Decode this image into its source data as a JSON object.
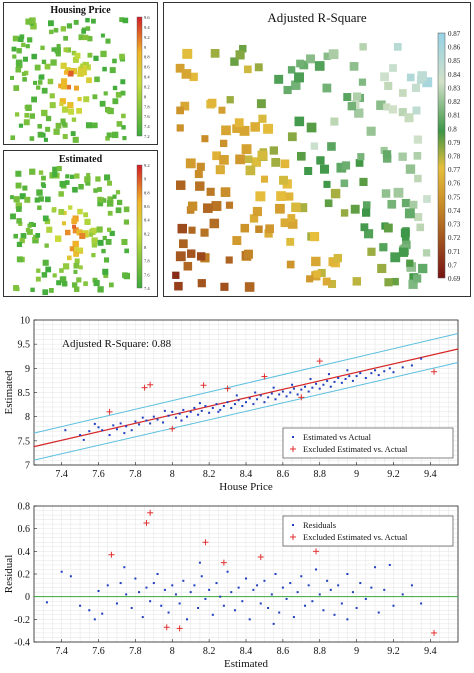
{
  "maps": {
    "housing": {
      "title": "Housing Price",
      "colorbar_ticks": [
        "9.6",
        "9.4",
        "9.2",
        "9",
        "8.8",
        "8.6",
        "8.4",
        "8.2",
        "8",
        "7.8",
        "7.6",
        "7.4",
        "7.2"
      ]
    },
    "estimated": {
      "title": "Estimated",
      "colorbar_ticks": [
        "9.2",
        "9",
        "8.8",
        "8.6",
        "8.4",
        "8.2",
        "8",
        "7.8",
        "7.6",
        "7.4"
      ]
    },
    "r2": {
      "title": "Adjusted R-Square",
      "colorbar_ticks": [
        "0.87",
        "0.86",
        "0.85",
        "0.84",
        "0.83",
        "0.82",
        "0.81",
        "0.8",
        "0.79",
        "0.78",
        "0.77",
        "0.76",
        "0.75",
        "0.74",
        "0.73",
        "0.72",
        "0.71",
        "0.7",
        "0.69"
      ]
    }
  },
  "colors": {
    "fit_line": "#d62728",
    "band_line": "#5bc0de",
    "points": "#1f3fbf",
    "excluded": "#e03030",
    "zero_line": "#3aa83a"
  },
  "chart_data": [
    {
      "type": "scatter",
      "annotation": "Adjusted R-Square: 0.88",
      "xlabel": "House Price",
      "ylabel": "Estimated",
      "xlim": [
        7.25,
        9.55
      ],
      "ylim": [
        7.0,
        10.0
      ],
      "xticks": [
        "7.4",
        "7.6",
        "7.8",
        "8",
        "8.2",
        "8.4",
        "8.6",
        "8.8",
        "9",
        "9.2",
        "9.4"
      ],
      "yticks": [
        "7",
        "7.5",
        "8",
        "8.5",
        "9",
        "9.5",
        "10"
      ],
      "grid": true,
      "legend": {
        "position": "bottom-right",
        "entries": [
          "Estimated vs Actual",
          "Excluded Estimated vs. Actual"
        ]
      },
      "fit_line": {
        "x": [
          7.25,
          9.55
        ],
        "y": [
          7.38,
          9.4
        ]
      },
      "band_upper": {
        "x": [
          7.25,
          9.55
        ],
        "y": [
          7.66,
          9.72
        ]
      },
      "band_lower": {
        "x": [
          7.25,
          9.55
        ],
        "y": [
          7.1,
          9.12
        ]
      },
      "series": [
        {
          "name": "Estimated vs Actual",
          "marker": "dot",
          "points": [
            [
              7.42,
              7.72
            ],
            [
              7.5,
              7.62
            ],
            [
              7.55,
              7.7
            ],
            [
              7.6,
              7.78
            ],
            [
              7.62,
              7.72
            ],
            [
              7.66,
              7.62
            ],
            [
              7.68,
              7.82
            ],
            [
              7.7,
              7.74
            ],
            [
              7.72,
              7.86
            ],
            [
              7.75,
              7.8
            ],
            [
              7.78,
              7.72
            ],
            [
              7.8,
              7.9
            ],
            [
              7.82,
              7.84
            ],
            [
              7.84,
              7.98
            ],
            [
              7.86,
              7.92
            ],
            [
              7.88,
              7.86
            ],
            [
              7.9,
              8.0
            ],
            [
              7.92,
              7.94
            ],
            [
              7.95,
              7.88
            ],
            [
              7.98,
              8.02
            ],
            [
              8.0,
              8.1
            ],
            [
              8.02,
              7.98
            ],
            [
              8.04,
              8.06
            ],
            [
              8.06,
              8.14
            ],
            [
              8.08,
              8.0
            ],
            [
              8.1,
              8.1
            ],
            [
              8.12,
              8.18
            ],
            [
              8.14,
              8.04
            ],
            [
              8.16,
              8.12
            ],
            [
              8.18,
              8.22
            ],
            [
              8.2,
              8.08
            ],
            [
              8.22,
              8.18
            ],
            [
              8.24,
              8.26
            ],
            [
              8.26,
              8.14
            ],
            [
              8.28,
              8.22
            ],
            [
              8.3,
              8.3
            ],
            [
              8.32,
              8.18
            ],
            [
              8.34,
              8.26
            ],
            [
              8.36,
              8.34
            ],
            [
              8.38,
              8.22
            ],
            [
              8.4,
              8.3
            ],
            [
              8.42,
              8.38
            ],
            [
              8.44,
              8.26
            ],
            [
              8.46,
              8.36
            ],
            [
              8.48,
              8.44
            ],
            [
              8.5,
              8.3
            ],
            [
              8.52,
              8.4
            ],
            [
              8.54,
              8.48
            ],
            [
              8.56,
              8.36
            ],
            [
              8.58,
              8.46
            ],
            [
              8.6,
              8.52
            ],
            [
              8.62,
              8.42
            ],
            [
              8.64,
              8.5
            ],
            [
              8.66,
              8.58
            ],
            [
              8.68,
              8.46
            ],
            [
              8.7,
              8.56
            ],
            [
              8.72,
              8.62
            ],
            [
              8.74,
              8.52
            ],
            [
              8.76,
              8.6
            ],
            [
              8.78,
              8.68
            ],
            [
              8.8,
              8.58
            ],
            [
              8.82,
              8.66
            ],
            [
              8.84,
              8.74
            ],
            [
              8.86,
              8.62
            ],
            [
              8.88,
              8.72
            ],
            [
              8.9,
              8.8
            ],
            [
              8.92,
              8.7
            ],
            [
              8.94,
              8.78
            ],
            [
              8.96,
              8.84
            ],
            [
              8.98,
              8.74
            ],
            [
              9.0,
              8.84
            ],
            [
              9.02,
              8.9
            ],
            [
              9.05,
              8.8
            ],
            [
              9.08,
              8.9
            ],
            [
              9.1,
              8.96
            ],
            [
              9.12,
              8.86
            ],
            [
              9.15,
              8.94
            ],
            [
              9.18,
              9.0
            ],
            [
              9.2,
              8.92
            ],
            [
              9.25,
              9.02
            ],
            [
              9.3,
              9.06
            ],
            [
              7.58,
              7.85
            ],
            [
              7.74,
              7.66
            ],
            [
              7.96,
              8.12
            ],
            [
              8.15,
              8.28
            ],
            [
              8.35,
              8.44
            ],
            [
              8.55,
              8.6
            ],
            [
              8.75,
              8.78
            ],
            [
              8.95,
              8.96
            ],
            [
              8.05,
              7.92
            ],
            [
              8.25,
              8.1
            ],
            [
              8.45,
              8.5
            ],
            [
              8.65,
              8.66
            ],
            [
              8.85,
              8.88
            ],
            [
              7.52,
              7.52
            ],
            [
              9.35,
              9.2
            ]
          ]
        },
        {
          "name": "Excluded Estimated vs. Actual",
          "marker": "plus",
          "points": [
            [
              7.66,
              8.1
            ],
            [
              7.85,
              8.6
            ],
            [
              7.88,
              8.66
            ],
            [
              8.17,
              8.65
            ],
            [
              8.3,
              8.58
            ],
            [
              8.5,
              8.83
            ],
            [
              8.8,
              9.15
            ],
            [
              9.42,
              8.93
            ],
            [
              8.0,
              7.75
            ],
            [
              8.7,
              8.4
            ]
          ]
        }
      ]
    },
    {
      "type": "scatter",
      "xlabel": "Estimated",
      "ylabel": "Residual",
      "xlim": [
        7.25,
        9.55
      ],
      "ylim": [
        -0.4,
        0.8
      ],
      "xticks": [
        "7.4",
        "7.6",
        "7.8",
        "8",
        "8.2",
        "8.4",
        "8.6",
        "8.8",
        "9",
        "9.2",
        "9.4"
      ],
      "yticks": [
        "-0.4",
        "-0.2",
        "0",
        "0.2",
        "0.4",
        "0.6",
        "0.8"
      ],
      "grid": true,
      "legend": {
        "position": "top-right",
        "entries": [
          "Residuals",
          "Excluded Estimated vs. Actual"
        ]
      },
      "zero_line": 0,
      "series": [
        {
          "name": "Residuals",
          "marker": "dot",
          "points": [
            [
              7.32,
              -0.05
            ],
            [
              7.4,
              0.22
            ],
            [
              7.45,
              0.18
            ],
            [
              7.5,
              -0.08
            ],
            [
              7.55,
              -0.12
            ],
            [
              7.6,
              0.05
            ],
            [
              7.62,
              -0.15
            ],
            [
              7.65,
              0.1
            ],
            [
              7.7,
              -0.06
            ],
            [
              7.72,
              0.12
            ],
            [
              7.75,
              0.02
            ],
            [
              7.78,
              -0.1
            ],
            [
              7.8,
              0.16
            ],
            [
              7.82,
              0.04
            ],
            [
              7.84,
              -0.18
            ],
            [
              7.86,
              0.08
            ],
            [
              7.88,
              -0.04
            ],
            [
              7.9,
              0.12
            ],
            [
              7.92,
              0.2
            ],
            [
              7.94,
              -0.08
            ],
            [
              7.96,
              0.06
            ],
            [
              7.98,
              -0.14
            ],
            [
              8.0,
              0.1
            ],
            [
              8.02,
              0.02
            ],
            [
              8.04,
              -0.06
            ],
            [
              8.06,
              0.14
            ],
            [
              8.08,
              -0.2
            ],
            [
              8.1,
              0.04
            ],
            [
              8.12,
              0.1
            ],
            [
              8.14,
              -0.1
            ],
            [
              8.16,
              0.18
            ],
            [
              8.18,
              -0.02
            ],
            [
              8.2,
              0.06
            ],
            [
              8.22,
              -0.16
            ],
            [
              8.24,
              0.12
            ],
            [
              8.26,
              0.0
            ],
            [
              8.28,
              -0.08
            ],
            [
              8.3,
              0.22
            ],
            [
              8.32,
              0.04
            ],
            [
              8.34,
              -0.12
            ],
            [
              8.36,
              0.08
            ],
            [
              8.38,
              -0.04
            ],
            [
              8.4,
              0.16
            ],
            [
              8.42,
              -0.2
            ],
            [
              8.44,
              0.06
            ],
            [
              8.46,
              0.1
            ],
            [
              8.48,
              -0.06
            ],
            [
              8.5,
              0.14
            ],
            [
              8.52,
              -0.1
            ],
            [
              8.54,
              0.02
            ],
            [
              8.56,
              0.2
            ],
            [
              8.58,
              -0.14
            ],
            [
              8.6,
              0.08
            ],
            [
              8.62,
              -0.02
            ],
            [
              8.64,
              0.12
            ],
            [
              8.66,
              -0.18
            ],
            [
              8.68,
              0.04
            ],
            [
              8.7,
              0.18
            ],
            [
              8.72,
              -0.08
            ],
            [
              8.74,
              0.1
            ],
            [
              8.76,
              -0.04
            ],
            [
              8.78,
              0.24
            ],
            [
              8.8,
              0.02
            ],
            [
              8.82,
              -0.12
            ],
            [
              8.84,
              0.14
            ],
            [
              8.86,
              0.06
            ],
            [
              8.88,
              -0.16
            ],
            [
              8.9,
              0.1
            ],
            [
              8.92,
              -0.06
            ],
            [
              8.95,
              0.2
            ],
            [
              8.98,
              0.04
            ],
            [
              9.0,
              -0.1
            ],
            [
              9.02,
              0.12
            ],
            [
              9.05,
              -0.02
            ],
            [
              9.08,
              0.08
            ],
            [
              9.1,
              0.26
            ],
            [
              9.12,
              -0.14
            ],
            [
              9.15,
              0.06
            ],
            [
              9.2,
              -0.08
            ],
            [
              9.25,
              0.02
            ],
            [
              9.3,
              0.1
            ],
            [
              9.35,
              -0.06
            ],
            [
              7.58,
              -0.2
            ],
            [
              7.74,
              0.26
            ],
            [
              8.15,
              0.3
            ],
            [
              8.55,
              -0.24
            ],
            [
              8.95,
              -0.2
            ],
            [
              9.18,
              0.28
            ]
          ]
        },
        {
          "name": "Excluded Estimated vs. Actual",
          "marker": "plus",
          "points": [
            [
              7.67,
              0.37
            ],
            [
              7.86,
              0.65
            ],
            [
              7.88,
              0.74
            ],
            [
              7.97,
              -0.27
            ],
            [
              8.04,
              -0.28
            ],
            [
              8.18,
              0.48
            ],
            [
              8.28,
              0.3
            ],
            [
              8.48,
              0.35
            ],
            [
              8.8,
              0.48
            ],
            [
              8.78,
              0.4
            ],
            [
              9.42,
              -0.32
            ]
          ]
        }
      ]
    }
  ]
}
